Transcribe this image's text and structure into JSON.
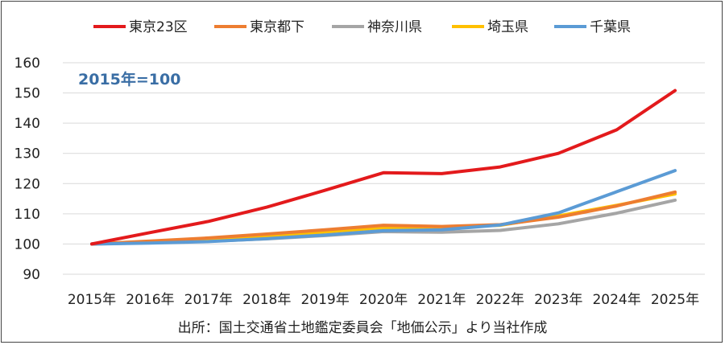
{
  "chart_data": {
    "type": "line",
    "title": "",
    "annotation": "2015年=100",
    "xlabel": "",
    "ylabel": "",
    "ylim": [
      90,
      160
    ],
    "yticks": [
      "90",
      "100",
      "110",
      "120",
      "130",
      "140",
      "150",
      "160"
    ],
    "categories": [
      "2015年",
      "2016年",
      "2017年",
      "2018年",
      "2019年",
      "2020年",
      "2021年",
      "2022年",
      "2023年",
      "2024年",
      "2025年"
    ],
    "grid": "horizontal",
    "legend_position": "top",
    "series": [
      {
        "name": "東京23区",
        "color": "#E31A1C",
        "values": [
          100,
          103.8,
          107.5,
          112.2,
          117.8,
          123.6,
          123.3,
          125.5,
          130.0,
          137.8,
          150.8
        ]
      },
      {
        "name": "東京都下",
        "color": "#ED7D31",
        "values": [
          100,
          101.0,
          102.0,
          103.3,
          104.7,
          106.2,
          105.8,
          106.4,
          108.9,
          112.6,
          117.2
        ]
      },
      {
        "name": "神奈川県",
        "color": "#A5A5A5",
        "values": [
          100,
          100.4,
          100.9,
          101.7,
          102.8,
          104.1,
          103.9,
          104.5,
          106.7,
          110.2,
          114.5
        ]
      },
      {
        "name": "埼玉県",
        "color": "#FFC000",
        "values": [
          100,
          100.7,
          101.4,
          102.6,
          104.0,
          105.4,
          105.6,
          106.2,
          109.3,
          112.8,
          116.6
        ]
      },
      {
        "name": "千葉県",
        "color": "#5B9BD5",
        "values": [
          100,
          100.3,
          100.8,
          101.8,
          103.0,
          104.4,
          104.7,
          106.3,
          110.3,
          117.3,
          124.3
        ]
      }
    ]
  },
  "source_note": "出所：国土交通省土地鑑定委員会「地価公示」より当社作成"
}
